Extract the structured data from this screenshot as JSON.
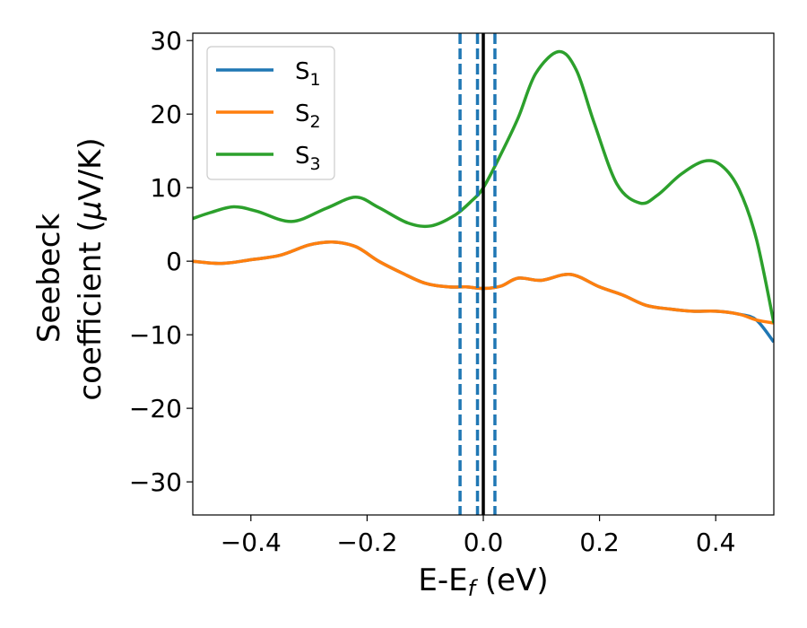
{
  "chart_data": {
    "type": "line",
    "xlabel": {
      "main": "E-E",
      "sub": "f",
      "unit": " (eV)"
    },
    "ylabel": {
      "line1": "Seebeck",
      "line2_main": "coefficient  (",
      "mu": "μ",
      "line2_tail": "V/K)"
    },
    "xlim": [
      -0.5,
      0.5
    ],
    "ylim": [
      -34.5,
      31
    ],
    "xticks": [
      -0.4,
      -0.2,
      0.0,
      0.2,
      0.4
    ],
    "xtick_labels": [
      "−0.4",
      "−0.2",
      "0.0",
      "0.2",
      "0.4"
    ],
    "yticks": [
      -30,
      -20,
      -10,
      0,
      10,
      20,
      30
    ],
    "ytick_labels": [
      "−30",
      "−20",
      "−10",
      "0",
      "10",
      "20",
      "30"
    ],
    "grid": false,
    "legend_position": "top-left",
    "series": [
      {
        "name": "S",
        "sub": "1",
        "color": "#1f77b4",
        "x": [
          -0.5,
          -0.45,
          -0.4,
          -0.35,
          -0.3,
          -0.26,
          -0.22,
          -0.18,
          -0.14,
          -0.1,
          -0.06,
          -0.03,
          0.0,
          0.03,
          0.06,
          0.1,
          0.15,
          0.2,
          0.24,
          0.28,
          0.32,
          0.36,
          0.4,
          0.44,
          0.47,
          0.5
        ],
        "y": [
          0.0,
          -0.3,
          0.2,
          0.8,
          2.2,
          2.6,
          2.0,
          0.0,
          -1.6,
          -3.0,
          -3.5,
          -3.5,
          -3.7,
          -3.4,
          -2.3,
          -2.6,
          -1.8,
          -3.5,
          -4.6,
          -6.0,
          -6.5,
          -6.8,
          -6.8,
          -7.2,
          -8.0,
          -11.0
        ]
      },
      {
        "name": "S",
        "sub": "2",
        "color": "#ff7f0e",
        "x": [
          -0.5,
          -0.45,
          -0.4,
          -0.35,
          -0.3,
          -0.26,
          -0.22,
          -0.18,
          -0.14,
          -0.1,
          -0.06,
          -0.03,
          0.0,
          0.03,
          0.06,
          0.1,
          0.15,
          0.2,
          0.24,
          0.28,
          0.32,
          0.36,
          0.4,
          0.44,
          0.47,
          0.5
        ],
        "y": [
          0.0,
          -0.3,
          0.2,
          0.8,
          2.2,
          2.6,
          2.0,
          0.0,
          -1.6,
          -3.0,
          -3.5,
          -3.5,
          -3.7,
          -3.4,
          -2.3,
          -2.6,
          -1.8,
          -3.5,
          -4.6,
          -6.0,
          -6.5,
          -6.8,
          -6.8,
          -7.2,
          -8.0,
          -8.4
        ]
      },
      {
        "name": "S",
        "sub": "3",
        "color": "#2ca02c",
        "x": [
          -0.5,
          -0.47,
          -0.43,
          -0.39,
          -0.33,
          -0.27,
          -0.22,
          -0.18,
          -0.13,
          -0.09,
          -0.05,
          -0.02,
          0.0,
          0.03,
          0.06,
          0.09,
          0.13,
          0.16,
          0.19,
          0.23,
          0.27,
          0.3,
          0.34,
          0.38,
          0.41,
          0.44,
          0.47,
          0.5
        ],
        "y": [
          5.8,
          6.6,
          7.4,
          6.8,
          5.4,
          7.2,
          8.7,
          7.3,
          5.2,
          4.8,
          6.2,
          8.2,
          10.0,
          14.5,
          19.5,
          25.5,
          28.5,
          26.0,
          19.0,
          10.5,
          7.9,
          9.0,
          11.8,
          13.6,
          13.0,
          9.8,
          3.0,
          -8.4
        ]
      }
    ],
    "vertical_lines": [
      {
        "x": 0.0,
        "style": "solid",
        "color": "#000000"
      },
      {
        "x": -0.04,
        "style": "dashed",
        "color": "#1f77b4"
      },
      {
        "x": -0.01,
        "style": "dashed",
        "color": "#1f77b4"
      },
      {
        "x": 0.02,
        "style": "dashed",
        "color": "#1f77b4"
      }
    ]
  }
}
